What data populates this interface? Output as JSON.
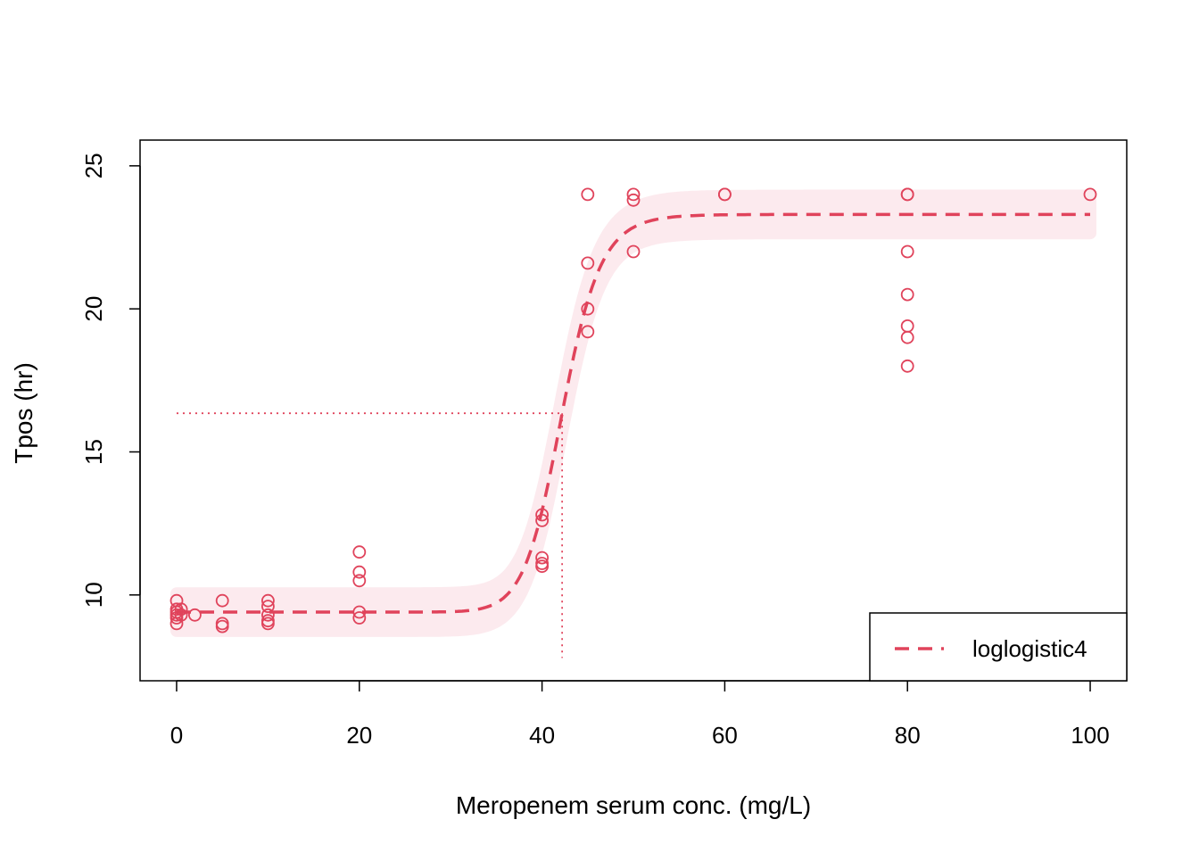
{
  "colors": {
    "accent": "#E0435B",
    "band": "#FCEAEE",
    "axis": "#000000",
    "background": "#FFFFFF"
  },
  "chart_data": {
    "type": "scatter",
    "title": "",
    "xlabel": "Meropenem serum conc. (mg/L)",
    "ylabel": "Tpos (hr)",
    "xlim": [
      -4,
      104
    ],
    "ylim": [
      7.0,
      25.9
    ],
    "x_ticks": [
      0,
      20,
      40,
      60,
      80,
      100
    ],
    "y_ticks": [
      10,
      15,
      20,
      25
    ],
    "x_tick_labels": [
      "0",
      "20",
      "40",
      "60",
      "80",
      "100"
    ],
    "y_tick_labels": [
      "10",
      "15",
      "20",
      "25"
    ],
    "grid": false,
    "legend_position": "bottom-right",
    "legend": [
      {
        "label": "loglogistic4",
        "style": "dashed"
      }
    ],
    "points": [
      {
        "x": 0,
        "y": 9.8
      },
      {
        "x": 0,
        "y": 9.5
      },
      {
        "x": 0,
        "y": 9.4
      },
      {
        "x": 0,
        "y": 9.3
      },
      {
        "x": 0,
        "y": 9.2
      },
      {
        "x": 0,
        "y": 9.0
      },
      {
        "x": 0.5,
        "y": 9.3
      },
      {
        "x": 0.5,
        "y": 9.5
      },
      {
        "x": 2,
        "y": 9.3
      },
      {
        "x": 5,
        "y": 9.8
      },
      {
        "x": 5,
        "y": 9.0
      },
      {
        "x": 5,
        "y": 8.9
      },
      {
        "x": 10,
        "y": 9.8
      },
      {
        "x": 10,
        "y": 9.6
      },
      {
        "x": 10,
        "y": 9.3
      },
      {
        "x": 10,
        "y": 9.1
      },
      {
        "x": 10,
        "y": 9.0
      },
      {
        "x": 20,
        "y": 11.5
      },
      {
        "x": 20,
        "y": 10.8
      },
      {
        "x": 20,
        "y": 10.5
      },
      {
        "x": 20,
        "y": 9.4
      },
      {
        "x": 20,
        "y": 9.2
      },
      {
        "x": 40,
        "y": 12.8
      },
      {
        "x": 40,
        "y": 12.6
      },
      {
        "x": 40,
        "y": 11.3
      },
      {
        "x": 40,
        "y": 11.1
      },
      {
        "x": 40,
        "y": 11.0
      },
      {
        "x": 45,
        "y": 24.0
      },
      {
        "x": 45,
        "y": 21.6
      },
      {
        "x": 45,
        "y": 20.0
      },
      {
        "x": 45,
        "y": 19.2
      },
      {
        "x": 50,
        "y": 24.0
      },
      {
        "x": 50,
        "y": 23.8
      },
      {
        "x": 50,
        "y": 22.0
      },
      {
        "x": 60,
        "y": 24.0
      },
      {
        "x": 60,
        "y": 24.0
      },
      {
        "x": 80,
        "y": 24.0
      },
      {
        "x": 80,
        "y": 24.0
      },
      {
        "x": 80,
        "y": 22.0
      },
      {
        "x": 80,
        "y": 20.5
      },
      {
        "x": 80,
        "y": 19.4
      },
      {
        "x": 80,
        "y": 19.0
      },
      {
        "x": 80,
        "y": 18.0
      },
      {
        "x": 100,
        "y": 24.0
      }
    ],
    "fit": {
      "model": "loglogistic4",
      "lower": 9.4,
      "upper": 23.3,
      "ec50": 42.2,
      "hill": 20,
      "ci_halfwidth": 0.65,
      "x_range": [
        0,
        100
      ]
    },
    "reference_point": {
      "x": 42.2,
      "y": 16.35
    }
  }
}
